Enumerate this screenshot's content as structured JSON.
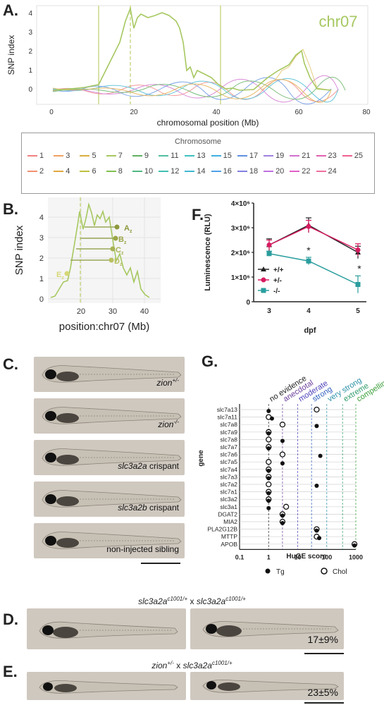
{
  "panelA": {
    "letter": "A.",
    "chrom_label": "chr07",
    "ylabel": "SNP index",
    "xlabel": "chromosomal position (Mb)",
    "xticks": [
      "0",
      "20",
      "40",
      "60",
      "80"
    ],
    "yticks": [
      "0",
      "1",
      "2",
      "3",
      "4"
    ]
  },
  "legend": {
    "title": "Chromosome",
    "items": [
      {
        "label": "1",
        "color": "#f08080"
      },
      {
        "label": "3",
        "color": "#f0a060"
      },
      {
        "label": "5",
        "color": "#d8b040"
      },
      {
        "label": "7",
        "color": "#a8c860"
      },
      {
        "label": "9",
        "color": "#60b060"
      },
      {
        "label": "11",
        "color": "#50c0a0"
      },
      {
        "label": "13",
        "color": "#40c0c0"
      },
      {
        "label": "15",
        "color": "#40b0e0"
      },
      {
        "label": "17",
        "color": "#6090e0"
      },
      {
        "label": "19",
        "color": "#a080e0"
      },
      {
        "label": "21",
        "color": "#d070d0"
      },
      {
        "label": "23",
        "color": "#e060b0"
      },
      {
        "label": "25",
        "color": "#f06090"
      },
      {
        "label": "2",
        "color": "#f09070"
      },
      {
        "label": "4",
        "color": "#e0a840"
      },
      {
        "label": "6",
        "color": "#c0c040"
      },
      {
        "label": "8",
        "color": "#80c050"
      },
      {
        "label": "10",
        "color": "#50b880"
      },
      {
        "label": "12",
        "color": "#40c0b0"
      },
      {
        "label": "14",
        "color": "#40b8d0"
      },
      {
        "label": "16",
        "color": "#50a0e8"
      },
      {
        "label": "18",
        "color": "#8080e0"
      },
      {
        "label": "20",
        "color": "#c070e0"
      },
      {
        "label": "22",
        "color": "#e060c8"
      },
      {
        "label": "24",
        "color": "#f070a0"
      }
    ]
  },
  "panelB": {
    "letter": "B.",
    "ylabel": "SNP index",
    "xlabel": "position:chr07 (Mb)",
    "xticks": [
      "20",
      "30",
      "40"
    ],
    "yticks": [
      "0",
      "1",
      "2",
      "3",
      "4"
    ],
    "markers": [
      {
        "label": "A",
        "sub": "z"
      },
      {
        "label": "B",
        "sub": "z"
      },
      {
        "label": "C",
        "sub": "z"
      },
      {
        "label": "D",
        "sub": "z"
      },
      {
        "label": "E",
        "sub": "z"
      }
    ]
  },
  "panelF": {
    "letter": "F.",
    "ylabel": "Luminescence (RLU)",
    "xlabel": "dpf",
    "yticks": [
      "0",
      "1×10⁶",
      "2×10⁶",
      "3×10⁶",
      "4×10⁶"
    ],
    "xticks": [
      "3",
      "4",
      "5"
    ],
    "star1": "*",
    "star2": "*"
  },
  "chart_data": [
    {
      "type": "line",
      "title": "",
      "xlabel": "dpf",
      "ylabel": "Luminescence (RLU)",
      "ylim": [
        0,
        4000000
      ],
      "x": [
        3,
        4,
        5
      ],
      "series": [
        {
          "name": "+/+",
          "values": [
            2300000,
            3100000,
            2000000
          ],
          "err": [
            250000,
            300000,
            250000
          ],
          "color": "#222222"
        },
        {
          "name": "+/-",
          "values": [
            2300000,
            3050000,
            2100000
          ],
          "err": [
            200000,
            250000,
            250000
          ],
          "color": "#d81b60"
        },
        {
          "name": "-/-",
          "values": [
            1950000,
            1650000,
            700000
          ],
          "err": [
            100000,
            150000,
            350000
          ],
          "color": "#2a9d9d"
        }
      ],
      "legend": "left"
    },
    {
      "type": "scatter",
      "title": "",
      "xlabel": "HuGE score",
      "ylabel": "gene",
      "xscale": "log",
      "xlim": [
        0.1,
        1000
      ],
      "categories": [
        "slc7a13",
        "slc7a11",
        "slc7a8",
        "slc7a9",
        "slc7a8",
        "slc7a7",
        "slc7a6",
        "slc7a5",
        "slc7a4",
        "slc7a3",
        "slc7a2",
        "slc7a1",
        "slc3a2",
        "slc3a1",
        "DGAT2",
        "MIA2",
        "PLA2G12B",
        "MTTP",
        "APOB"
      ],
      "series": [
        {
          "name": "Tg",
          "values": [
            1,
            1.3,
            45,
            1,
            3,
            1,
            60,
            3,
            1,
            1,
            45,
            1,
            1,
            1,
            3,
            3,
            45,
            55,
            900
          ]
        },
        {
          "name": "Chol",
          "values": [
            45,
            1,
            3,
            1,
            1,
            1,
            3,
            1,
            1,
            1,
            1,
            1,
            1,
            4,
            3,
            3,
            45,
            45,
            900
          ]
        }
      ],
      "thresholds": [
        "no evidence",
        "anecdotal",
        "moderate",
        "strong",
        "very strong",
        "extreme",
        "compelling"
      ]
    }
  ],
  "panelG": {
    "letter": "G.",
    "ylabel": "gene",
    "xlabel": "HuGE score",
    "xticks": [
      "0.1",
      "1",
      "10",
      "100",
      "1000"
    ],
    "thresholds": [
      {
        "label": "no evidence",
        "color": "#222222"
      },
      {
        "label": "anecdotal",
        "color": "#6a3d9a"
      },
      {
        "label": "moderate",
        "color": "#4b3fb8"
      },
      {
        "label": "strong",
        "color": "#2e5fbf"
      },
      {
        "label": "very strong",
        "color": "#2a8fa8"
      },
      {
        "label": "extreme",
        "color": "#2e9a6a"
      },
      {
        "label": "compelling",
        "color": "#3a9e3a"
      }
    ],
    "legend_tg": "Tg",
    "legend_chol": "Chol"
  },
  "panelC": {
    "letter": "C.",
    "labels": [
      {
        "main": "zion",
        "sup": "+/-",
        "suffix": ""
      },
      {
        "main": "zion",
        "sup": "-/-",
        "suffix": ""
      },
      {
        "main": "slc3a2a",
        "sup": "",
        "suffix": " crispant"
      },
      {
        "main": "slc3a2b",
        "sup": "",
        "suffix": " crispant"
      },
      {
        "main": "",
        "sup": "",
        "suffix": "non-injected sibling"
      }
    ]
  },
  "panelD": {
    "letter": "D.",
    "cross_a": "slc3a2a",
    "cross_a_sup": "c1001/+",
    "cross_x": " x ",
    "cross_b": "slc3a2a",
    "cross_b_sup": "c1001/+",
    "percent": "17±9%"
  },
  "panelE": {
    "letter": "E.",
    "cross_a": "zion",
    "cross_a_sup": "+/-",
    "cross_x": " x ",
    "cross_b": "slc3a2a",
    "cross_b_sup": "c1001/+",
    "percent": "23±5%"
  }
}
